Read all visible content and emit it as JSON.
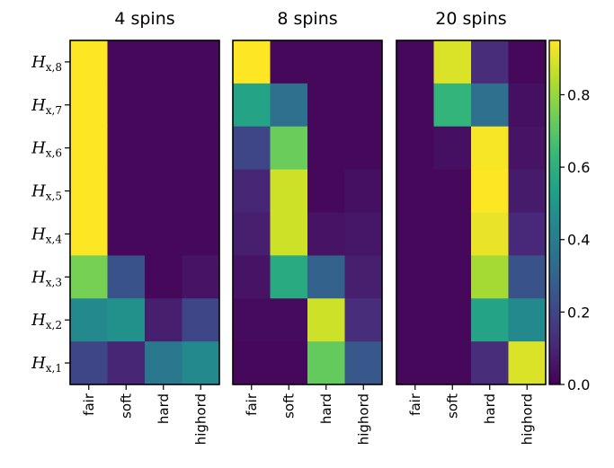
{
  "chart_data": {
    "type": "heatmap",
    "panels": [
      {
        "title": "4 spins",
        "values": [
          [
            0.95,
            0.02,
            0.02,
            0.02
          ],
          [
            0.95,
            0.02,
            0.02,
            0.02
          ],
          [
            0.95,
            0.02,
            0.02,
            0.02
          ],
          [
            0.95,
            0.02,
            0.02,
            0.02
          ],
          [
            0.95,
            0.02,
            0.02,
            0.02
          ],
          [
            0.75,
            0.24,
            0.02,
            0.05
          ],
          [
            0.45,
            0.48,
            0.08,
            0.2
          ],
          [
            0.2,
            0.1,
            0.38,
            0.45
          ]
        ]
      },
      {
        "title": "8 spins",
        "values": [
          [
            0.95,
            0.02,
            0.02,
            0.02
          ],
          [
            0.55,
            0.35,
            0.02,
            0.02
          ],
          [
            0.2,
            0.73,
            0.02,
            0.02
          ],
          [
            0.1,
            0.88,
            0.02,
            0.04
          ],
          [
            0.08,
            0.88,
            0.05,
            0.06
          ],
          [
            0.05,
            0.58,
            0.3,
            0.08
          ],
          [
            0.03,
            0.03,
            0.88,
            0.12
          ],
          [
            0.02,
            0.02,
            0.72,
            0.26
          ]
        ]
      },
      {
        "title": "20 spins",
        "values": [
          [
            0.02,
            0.9,
            0.12,
            0.02
          ],
          [
            0.02,
            0.62,
            0.35,
            0.04
          ],
          [
            0.02,
            0.04,
            0.94,
            0.05
          ],
          [
            0.02,
            0.02,
            0.95,
            0.07
          ],
          [
            0.02,
            0.02,
            0.92,
            0.11
          ],
          [
            0.02,
            0.02,
            0.82,
            0.24
          ],
          [
            0.02,
            0.02,
            0.55,
            0.45
          ],
          [
            0.02,
            0.02,
            0.12,
            0.9
          ]
        ]
      }
    ],
    "xtick_labels": [
      "fair",
      "soft",
      "hard",
      "highord"
    ],
    "ytick_labels": [
      {
        "base": "H",
        "sub": "x,8"
      },
      {
        "base": "H",
        "sub": "x,7"
      },
      {
        "base": "H",
        "sub": "x,6"
      },
      {
        "base": "H",
        "sub": "x,5"
      },
      {
        "base": "H",
        "sub": "x,4"
      },
      {
        "base": "H",
        "sub": "x,3"
      },
      {
        "base": "H",
        "sub": "x,2"
      },
      {
        "base": "H",
        "sub": "x,1"
      }
    ],
    "colorbar": {
      "colormap": "viridis",
      "range": [
        0.0,
        0.95
      ],
      "ticks": [
        0.0,
        0.2,
        0.4,
        0.6,
        0.8
      ],
      "tick_labels": [
        "0.0",
        "0.2",
        "0.4",
        "0.6",
        "0.8"
      ]
    }
  }
}
